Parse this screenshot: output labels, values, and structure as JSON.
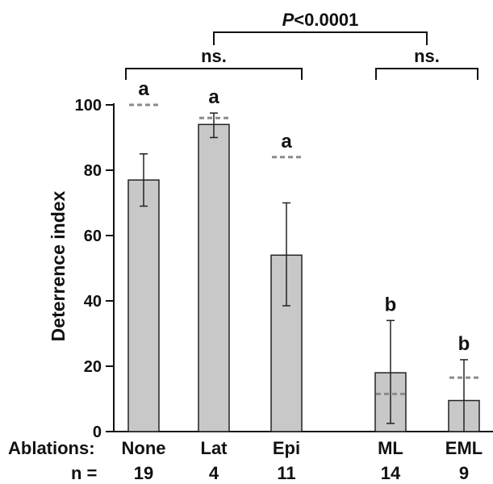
{
  "chart_data": {
    "type": "bar",
    "ylabel": "Deterrence index",
    "ylim": [
      0,
      100
    ],
    "yticks": [
      "0",
      "20",
      "40",
      "60",
      "80",
      "100"
    ],
    "row_labels": {
      "ablations": "Ablations:",
      "n": "n ="
    },
    "categories": [
      "None",
      "Lat",
      "Epi",
      "ML",
      "EML"
    ],
    "n_values": [
      "19",
      "4",
      "11",
      "14",
      "9"
    ],
    "values": [
      77,
      94,
      54,
      18,
      9.5
    ],
    "error_low": [
      69,
      90,
      38.5,
      2.5,
      0
    ],
    "error_high": [
      85,
      97.5,
      70,
      34,
      22
    ],
    "reference_dashes": [
      100,
      96,
      84,
      11.5,
      16.5
    ],
    "letters": [
      "a",
      "a",
      "a",
      "b",
      "b"
    ],
    "bar_color": "#c8c8c8",
    "dash_color": "#8a8a8a",
    "brackets": [
      {
        "from": "None",
        "to": "Epi",
        "label": "ns."
      },
      {
        "from": "ML",
        "to": "EML",
        "label": "ns."
      },
      {
        "from": "ns. (None–Epi)",
        "to": "ns. (ML–EML)",
        "label": "P<0.0001"
      }
    ]
  }
}
